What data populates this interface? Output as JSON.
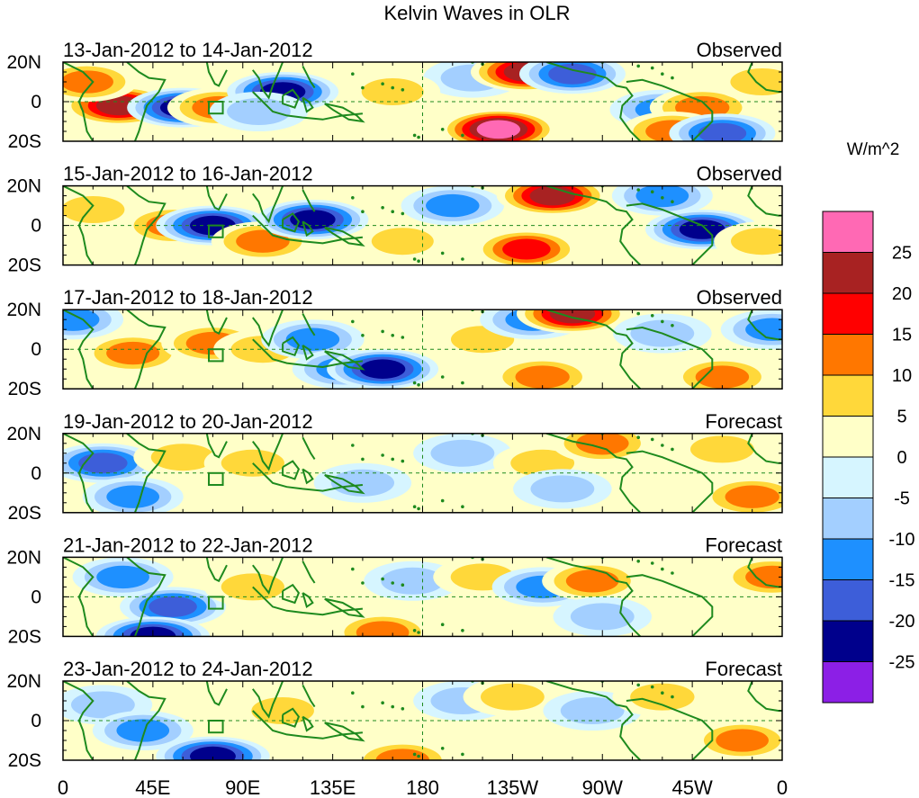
{
  "chart_data": {
    "type": "heatmap",
    "title": "Kelvin Waves in OLR",
    "units": "W/m^2",
    "x_ticks": [
      "0",
      "45E",
      "90E",
      "135E",
      "180",
      "135W",
      "90W",
      "45W",
      "0"
    ],
    "x_tick_degrees": [
      0,
      45,
      90,
      135,
      180,
      225,
      270,
      315,
      360
    ],
    "y_ticks": [
      "20N",
      "0",
      "20S"
    ],
    "y_tick_degrees": [
      20,
      0,
      -20
    ],
    "xlim": [
      0,
      360
    ],
    "ylim": [
      -20,
      20
    ],
    "levels": [
      -25,
      -20,
      -15,
      -10,
      -5,
      0,
      5,
      10,
      15,
      20,
      25
    ],
    "level_labels": [
      "25",
      "20",
      "15",
      "10",
      "5",
      "0",
      "-5",
      "-10",
      "-15",
      "-20",
      "-25"
    ],
    "colors": [
      "#8c1fe6",
      "#00008c",
      "#3d5ed9",
      "#1e90ff",
      "#a3cfff",
      "#d6f5ff",
      "#ffffc8",
      "#ffd83a",
      "#ff7700",
      "#ff0000",
      "#a82222",
      "#ff69b4"
    ],
    "land_color": "#1e8a1e",
    "panels": [
      {
        "period": "13-Jan-2012 to 14-Jan-2012",
        "status": "Observed",
        "features": [
          {
            "lon": 28,
            "lat": -2,
            "value": 20
          },
          {
            "lon": 12,
            "lat": 10,
            "value": 10
          },
          {
            "lon": 60,
            "lat": -3,
            "value": -20
          },
          {
            "lon": 78,
            "lat": -3,
            "value": 12
          },
          {
            "lon": 110,
            "lat": 5,
            "value": -20
          },
          {
            "lon": 98,
            "lat": -5,
            "value": -8
          },
          {
            "lon": 205,
            "lat": 12,
            "value": -8
          },
          {
            "lon": 232,
            "lat": 15,
            "value": 20
          },
          {
            "lon": 255,
            "lat": 14,
            "value": -15
          },
          {
            "lon": 218,
            "lat": -14,
            "value": 25
          },
          {
            "lon": 300,
            "lat": -4,
            "value": -14
          },
          {
            "lon": 320,
            "lat": -3,
            "value": 14
          },
          {
            "lon": 305,
            "lat": -15,
            "value": 12
          },
          {
            "lon": 350,
            "lat": 10,
            "value": 8
          },
          {
            "lon": 330,
            "lat": -16,
            "value": -15
          },
          {
            "lon": 165,
            "lat": 5,
            "value": 5
          }
        ]
      },
      {
        "period": "15-Jan-2012 to 16-Jan-2012",
        "status": "Observed",
        "features": [
          {
            "lon": 15,
            "lat": 8,
            "value": 7
          },
          {
            "lon": 55,
            "lat": 0,
            "value": 12
          },
          {
            "lon": 75,
            "lat": 0,
            "value": -22
          },
          {
            "lon": 100,
            "lat": -8,
            "value": 12
          },
          {
            "lon": 125,
            "lat": 3,
            "value": -20
          },
          {
            "lon": 195,
            "lat": 10,
            "value": -12
          },
          {
            "lon": 245,
            "lat": 15,
            "value": 20
          },
          {
            "lon": 232,
            "lat": -12,
            "value": 15
          },
          {
            "lon": 300,
            "lat": 15,
            "value": -10
          },
          {
            "lon": 320,
            "lat": -2,
            "value": -22
          },
          {
            "lon": 170,
            "lat": -8,
            "value": 5
          },
          {
            "lon": 350,
            "lat": -8,
            "value": 6
          }
        ]
      },
      {
        "period": "17-Jan-2012 to 18-Jan-2012",
        "status": "Observed",
        "features": [
          {
            "lon": 5,
            "lat": 15,
            "value": -10
          },
          {
            "lon": 35,
            "lat": -2,
            "value": 11
          },
          {
            "lon": 75,
            "lat": 3,
            "value": 12
          },
          {
            "lon": 100,
            "lat": 0,
            "value": 8
          },
          {
            "lon": 125,
            "lat": 5,
            "value": -12
          },
          {
            "lon": 140,
            "lat": -10,
            "value": -10
          },
          {
            "lon": 160,
            "lat": -10,
            "value": -20
          },
          {
            "lon": 210,
            "lat": 5,
            "value": 7
          },
          {
            "lon": 235,
            "lat": 15,
            "value": -14
          },
          {
            "lon": 255,
            "lat": 18,
            "value": 20
          },
          {
            "lon": 240,
            "lat": -14,
            "value": 14
          },
          {
            "lon": 300,
            "lat": 8,
            "value": -8
          },
          {
            "lon": 330,
            "lat": -14,
            "value": 12
          },
          {
            "lon": 355,
            "lat": 10,
            "value": -12
          }
        ]
      },
      {
        "period": "19-Jan-2012 to 20-Jan-2012",
        "status": "Forecast",
        "features": [
          {
            "lon": 20,
            "lat": 5,
            "value": -18
          },
          {
            "lon": 35,
            "lat": -12,
            "value": -10
          },
          {
            "lon": 60,
            "lat": 8,
            "value": 8
          },
          {
            "lon": 95,
            "lat": 5,
            "value": 7
          },
          {
            "lon": 150,
            "lat": -5,
            "value": -7
          },
          {
            "lon": 200,
            "lat": 10,
            "value": -8
          },
          {
            "lon": 240,
            "lat": 5,
            "value": 8
          },
          {
            "lon": 270,
            "lat": 15,
            "value": 10
          },
          {
            "lon": 250,
            "lat": -8,
            "value": -8
          },
          {
            "lon": 330,
            "lat": 12,
            "value": 8
          },
          {
            "lon": 345,
            "lat": -12,
            "value": 14
          }
        ]
      },
      {
        "period": "21-Jan-2012 to 22-Jan-2012",
        "status": "Forecast",
        "features": [
          {
            "lon": 30,
            "lat": 10,
            "value": -10
          },
          {
            "lon": 55,
            "lat": -5,
            "value": -15
          },
          {
            "lon": 45,
            "lat": -20,
            "value": -22
          },
          {
            "lon": 95,
            "lat": 5,
            "value": 7
          },
          {
            "lon": 175,
            "lat": 8,
            "value": -7
          },
          {
            "lon": 210,
            "lat": 10,
            "value": 8
          },
          {
            "lon": 240,
            "lat": 5,
            "value": -10
          },
          {
            "lon": 265,
            "lat": 8,
            "value": 10
          },
          {
            "lon": 270,
            "lat": -10,
            "value": -8
          },
          {
            "lon": 355,
            "lat": 10,
            "value": 12
          },
          {
            "lon": 160,
            "lat": -18,
            "value": 10
          }
        ]
      },
      {
        "period": "23-Jan-2012 to 24-Jan-2012",
        "status": "Forecast",
        "features": [
          {
            "lon": 20,
            "lat": 8,
            "value": -8
          },
          {
            "lon": 40,
            "lat": -5,
            "value": -10
          },
          {
            "lon": 75,
            "lat": -18,
            "value": -22
          },
          {
            "lon": 110,
            "lat": 5,
            "value": 6
          },
          {
            "lon": 170,
            "lat": -20,
            "value": 12
          },
          {
            "lon": 200,
            "lat": 10,
            "value": -8
          },
          {
            "lon": 225,
            "lat": 12,
            "value": 8
          },
          {
            "lon": 265,
            "lat": 5,
            "value": -8
          },
          {
            "lon": 300,
            "lat": 12,
            "value": 9
          },
          {
            "lon": 340,
            "lat": -10,
            "value": 10
          }
        ]
      }
    ]
  }
}
